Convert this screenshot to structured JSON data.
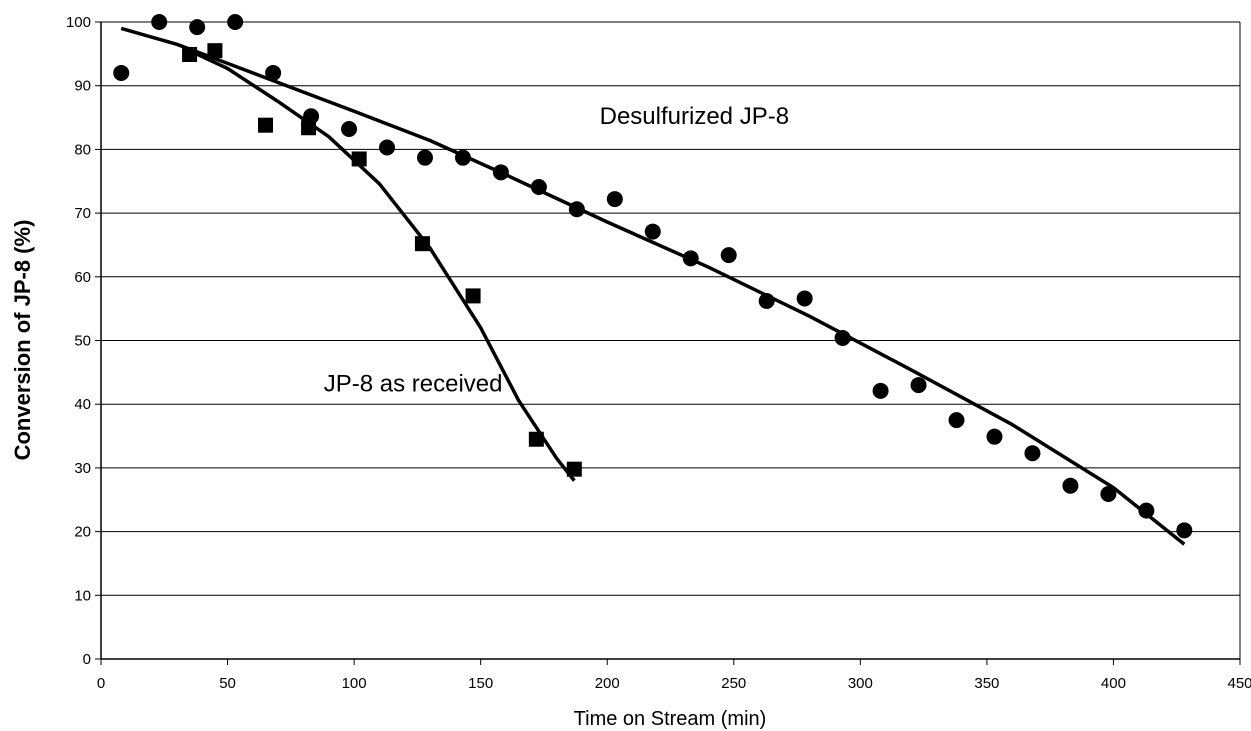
{
  "chart_data": {
    "type": "scatter",
    "title": "",
    "xlabel": "Time on Stream (min)",
    "ylabel": "Conversion of JP-8 (%)",
    "xlim": [
      0,
      450
    ],
    "ylim": [
      0,
      100
    ],
    "xticks": [
      0,
      50,
      100,
      150,
      200,
      250,
      300,
      350,
      400,
      450
    ],
    "yticks": [
      0,
      10,
      20,
      30,
      40,
      50,
      60,
      70,
      80,
      90,
      100
    ],
    "grid": "horizontal",
    "legend": "none",
    "annotations": [
      {
        "text": "Desulfurized  JP-8",
        "x": 197,
        "y": 84
      },
      {
        "text": "JP-8 as received",
        "x": 88,
        "y": 42
      }
    ],
    "series": [
      {
        "marker": "circle",
        "x": [
          8,
          23,
          38,
          53,
          68,
          83,
          98,
          113,
          128,
          143,
          158,
          173,
          188,
          203,
          218,
          233,
          248,
          263,
          278,
          293,
          308,
          323,
          338,
          353,
          368,
          383,
          398,
          413,
          428
        ],
        "y": [
          92,
          100,
          99.2,
          100,
          92,
          85.2,
          83.2,
          80.3,
          78.7,
          78.7,
          76.4,
          74.1,
          70.6,
          72.2,
          67.1,
          62.9,
          63.4,
          56.2,
          56.6,
          50.4,
          42.1,
          43.0,
          37.5,
          34.9,
          32.3,
          27.2,
          25.9,
          23.3,
          20.2
        ],
        "trend": {
          "x": [
            8,
            30,
            50,
            80,
            100,
            130,
            160,
            200,
            240,
            280,
            320,
            360,
            400,
            428
          ],
          "y": [
            99,
            96.5,
            93.5,
            89,
            86,
            81.4,
            76,
            68.6,
            61.5,
            53.8,
            45.4,
            36.8,
            26.9,
            18
          ]
        }
      },
      {
        "marker": "square",
        "x": [
          35,
          45,
          65,
          82,
          102,
          127,
          147,
          172,
          187
        ],
        "y": [
          94.9,
          95.5,
          83.8,
          83.4,
          78.5,
          65.2,
          57,
          34.5,
          29.8
        ],
        "trend": {
          "x": [
            35,
            50,
            70,
            90,
            110,
            130,
            150,
            165,
            180,
            187
          ],
          "y": [
            95.5,
            92.7,
            87.5,
            82,
            74.6,
            64.5,
            52,
            40.6,
            31.5,
            28
          ]
        }
      }
    ]
  }
}
